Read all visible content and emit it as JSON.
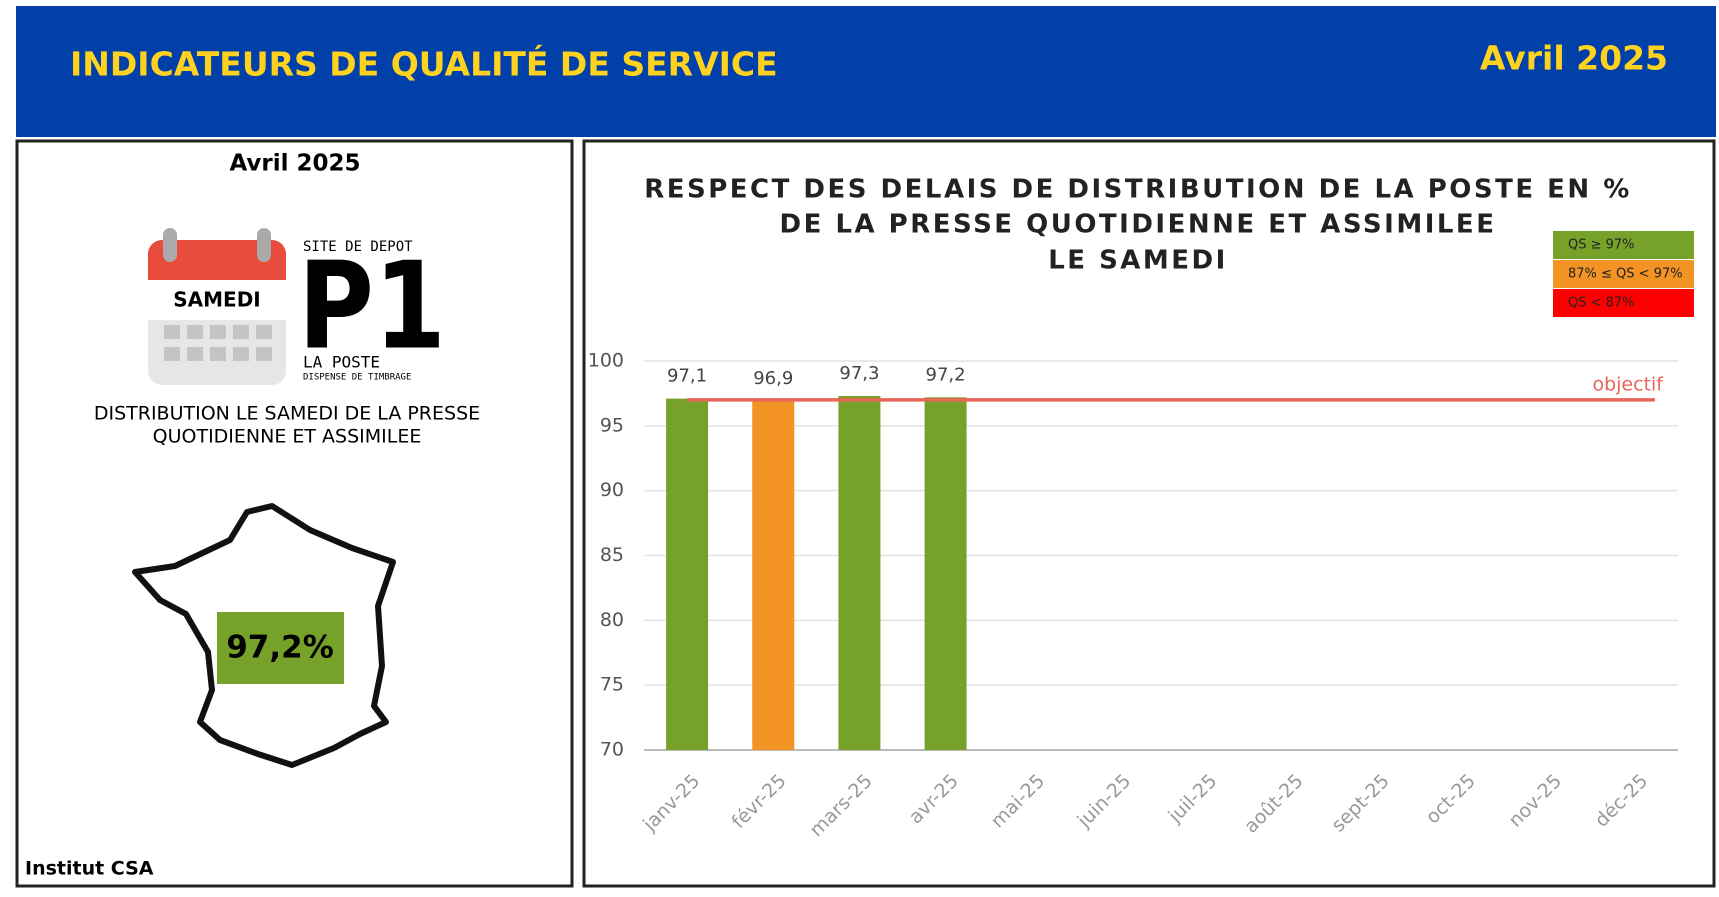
{
  "header": {
    "title": "INDICATEURS DE QUALITÉ DE SERVICE",
    "date": "Avril 2025"
  },
  "left_panel": {
    "title": "Avril 2025",
    "calendar_label": "SAMEDI",
    "logo": {
      "top": "SITE DE DEPOT",
      "code": "P1",
      "brand": "LA POSTE",
      "sub": "DISPENSE DE TIMBRAGE"
    },
    "description": [
      "DISTRIBUTION LE SAMEDI DE LA PRESSE",
      "QUOTIDIENNE ET ASSIMILEE"
    ],
    "value": "97,2%",
    "footer": "Institut CSA"
  },
  "chart_data": {
    "type": "bar",
    "title": [
      "RESPECT DES DELAIS DE DISTRIBUTION DE LA POSTE EN %",
      "DE LA PRESSE QUOTIDIENNE ET ASSIMILEE",
      "LE SAMEDI"
    ],
    "categories": [
      "janv-25",
      "févr-25",
      "mars-25",
      "avr-25",
      "mai-25",
      "juin-25",
      "juil-25",
      "août-25",
      "sept-25",
      "oct-25",
      "nov-25",
      "déc-25"
    ],
    "values": [
      97.1,
      96.9,
      97.3,
      97.2,
      null,
      null,
      null,
      null,
      null,
      null,
      null,
      null
    ],
    "value_labels": [
      "97,1",
      "96,9",
      "97,3",
      "97,2",
      null,
      null,
      null,
      null,
      null,
      null,
      null,
      null
    ],
    "colors": [
      "#77a22a",
      "#f39323",
      "#77a22a",
      "#77a22a",
      null,
      null,
      null,
      null,
      null,
      null,
      null,
      null
    ],
    "ylim": [
      70,
      100
    ],
    "yticks": [
      70,
      75,
      80,
      85,
      90,
      95,
      100
    ],
    "grid": true,
    "objective": {
      "value": 97,
      "label": "objectif",
      "color": "#e8655a"
    },
    "legend": [
      {
        "label": "QS ≥ 97%",
        "color": "#77a22a"
      },
      {
        "label": "87% ≤ QS < 97%",
        "color": "#f39323"
      },
      {
        "label": "QS < 87%",
        "color": "#ff0000"
      }
    ]
  }
}
